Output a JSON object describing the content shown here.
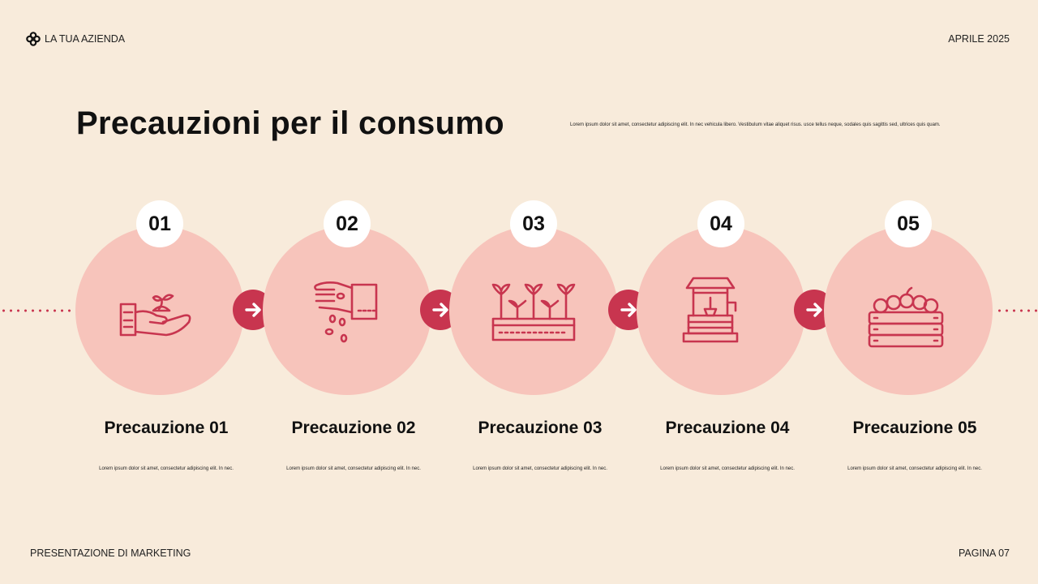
{
  "header": {
    "brand": "LA TUA AZIENDA",
    "date": "APRILE 2025"
  },
  "footer": {
    "left": "PRESENTAZIONE DI MARKETING",
    "right": "PAGINA 07"
  },
  "title": "Precauzioni per il consumo",
  "description": "Lorem ipsum dolor sit amet, consectetur adipiscing elit. In nec vehicula libero. Vestibulum vitae aliquet risus. usce tellus neque, sodales quis sagittis sed, ultrices quis quam.",
  "colors": {
    "background": "#f8ebdb",
    "circle": "#f7c4bb",
    "accent": "#c8354f"
  },
  "steps": [
    {
      "number": "01",
      "title": "Precauzione 01",
      "text": "Lorem ipsum dolor sit amet, consectetur adipiscing elit. In nec.",
      "icon": "hand-plant-icon"
    },
    {
      "number": "02",
      "title": "Precauzione 02",
      "text": "Lorem ipsum dolor sit amet, consectetur adipiscing elit. In nec.",
      "icon": "hand-seeds-icon"
    },
    {
      "number": "03",
      "title": "Precauzione 03",
      "text": "Lorem ipsum dolor sit amet, consectetur adipiscing elit. In nec.",
      "icon": "seedlings-planter-icon"
    },
    {
      "number": "04",
      "title": "Precauzione 04",
      "text": "Lorem ipsum dolor sit amet, consectetur adipiscing elit. In nec.",
      "icon": "water-well-icon"
    },
    {
      "number": "05",
      "title": "Precauzione 05",
      "text": "Lorem ipsum dolor sit amet, consectetur adipiscing elit. In nec.",
      "icon": "fruit-crate-icon"
    }
  ]
}
